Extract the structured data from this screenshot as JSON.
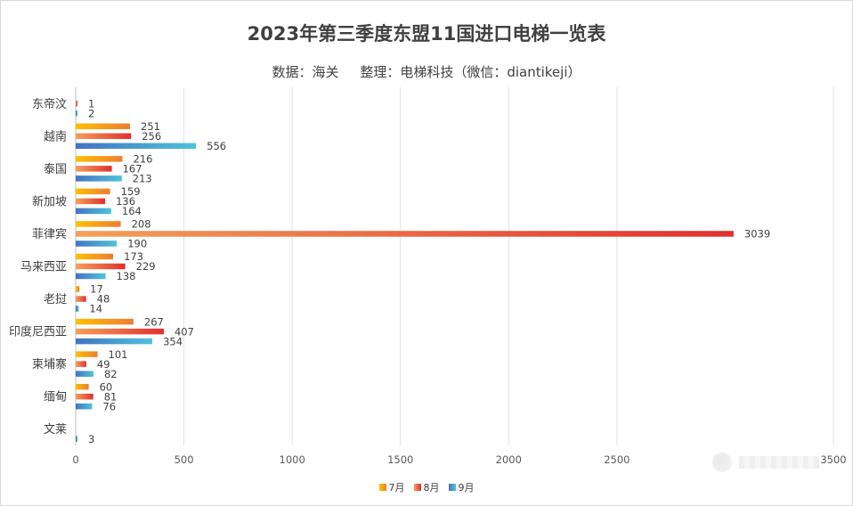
{
  "chart_data": {
    "type": "bar",
    "orientation": "horizontal",
    "title": "2023年第三季度东盟11国进口电梯一览表",
    "subtitle": "数据：海关     整理：电梯科技（微信：diantikeji）",
    "categories": [
      "东帝汶",
      "越南",
      "泰国",
      "新加坡",
      "菲律宾",
      "马来西亚",
      "老挝",
      "印度尼西亚",
      "柬埔寨",
      "缅甸",
      "文莱"
    ],
    "series": [
      {
        "name": "7月",
        "values": [
          0,
          251,
          216,
          159,
          208,
          173,
          17,
          267,
          101,
          60,
          0
        ],
        "labels": [
          "",
          "251",
          "216",
          "159",
          "208",
          "173",
          "17",
          "267",
          "101",
          "60",
          ""
        ]
      },
      {
        "name": "8月",
        "values": [
          1,
          256,
          167,
          136,
          3039,
          229,
          48,
          407,
          49,
          81,
          0
        ],
        "labels": [
          "1",
          "256",
          "167",
          "136",
          "3039",
          "229",
          "48",
          "407",
          "49",
          "81",
          ""
        ]
      },
      {
        "name": "9月",
        "values": [
          2,
          556,
          213,
          164,
          190,
          138,
          14,
          354,
          82,
          76,
          3
        ],
        "labels": [
          "2",
          "556",
          "213",
          "164",
          "190",
          "138",
          "14",
          "354",
          "82",
          "76",
          "3"
        ]
      }
    ],
    "xlim": [
      0,
      3500
    ],
    "xticks": [
      0,
      500,
      1000,
      1500,
      2000,
      2500,
      3500
    ],
    "xtick_labels": [
      "0",
      "500",
      "1000",
      "1500",
      "2000",
      "2500",
      "3500"
    ],
    "grid": true,
    "legend": "bottom",
    "colors": {
      "7月": [
        "#ffc000",
        "#ed7d31"
      ],
      "8月": [
        "#f4b183",
        "#e03030"
      ],
      "9月": [
        "#4472c4",
        "#4fc3d9"
      ]
    }
  }
}
